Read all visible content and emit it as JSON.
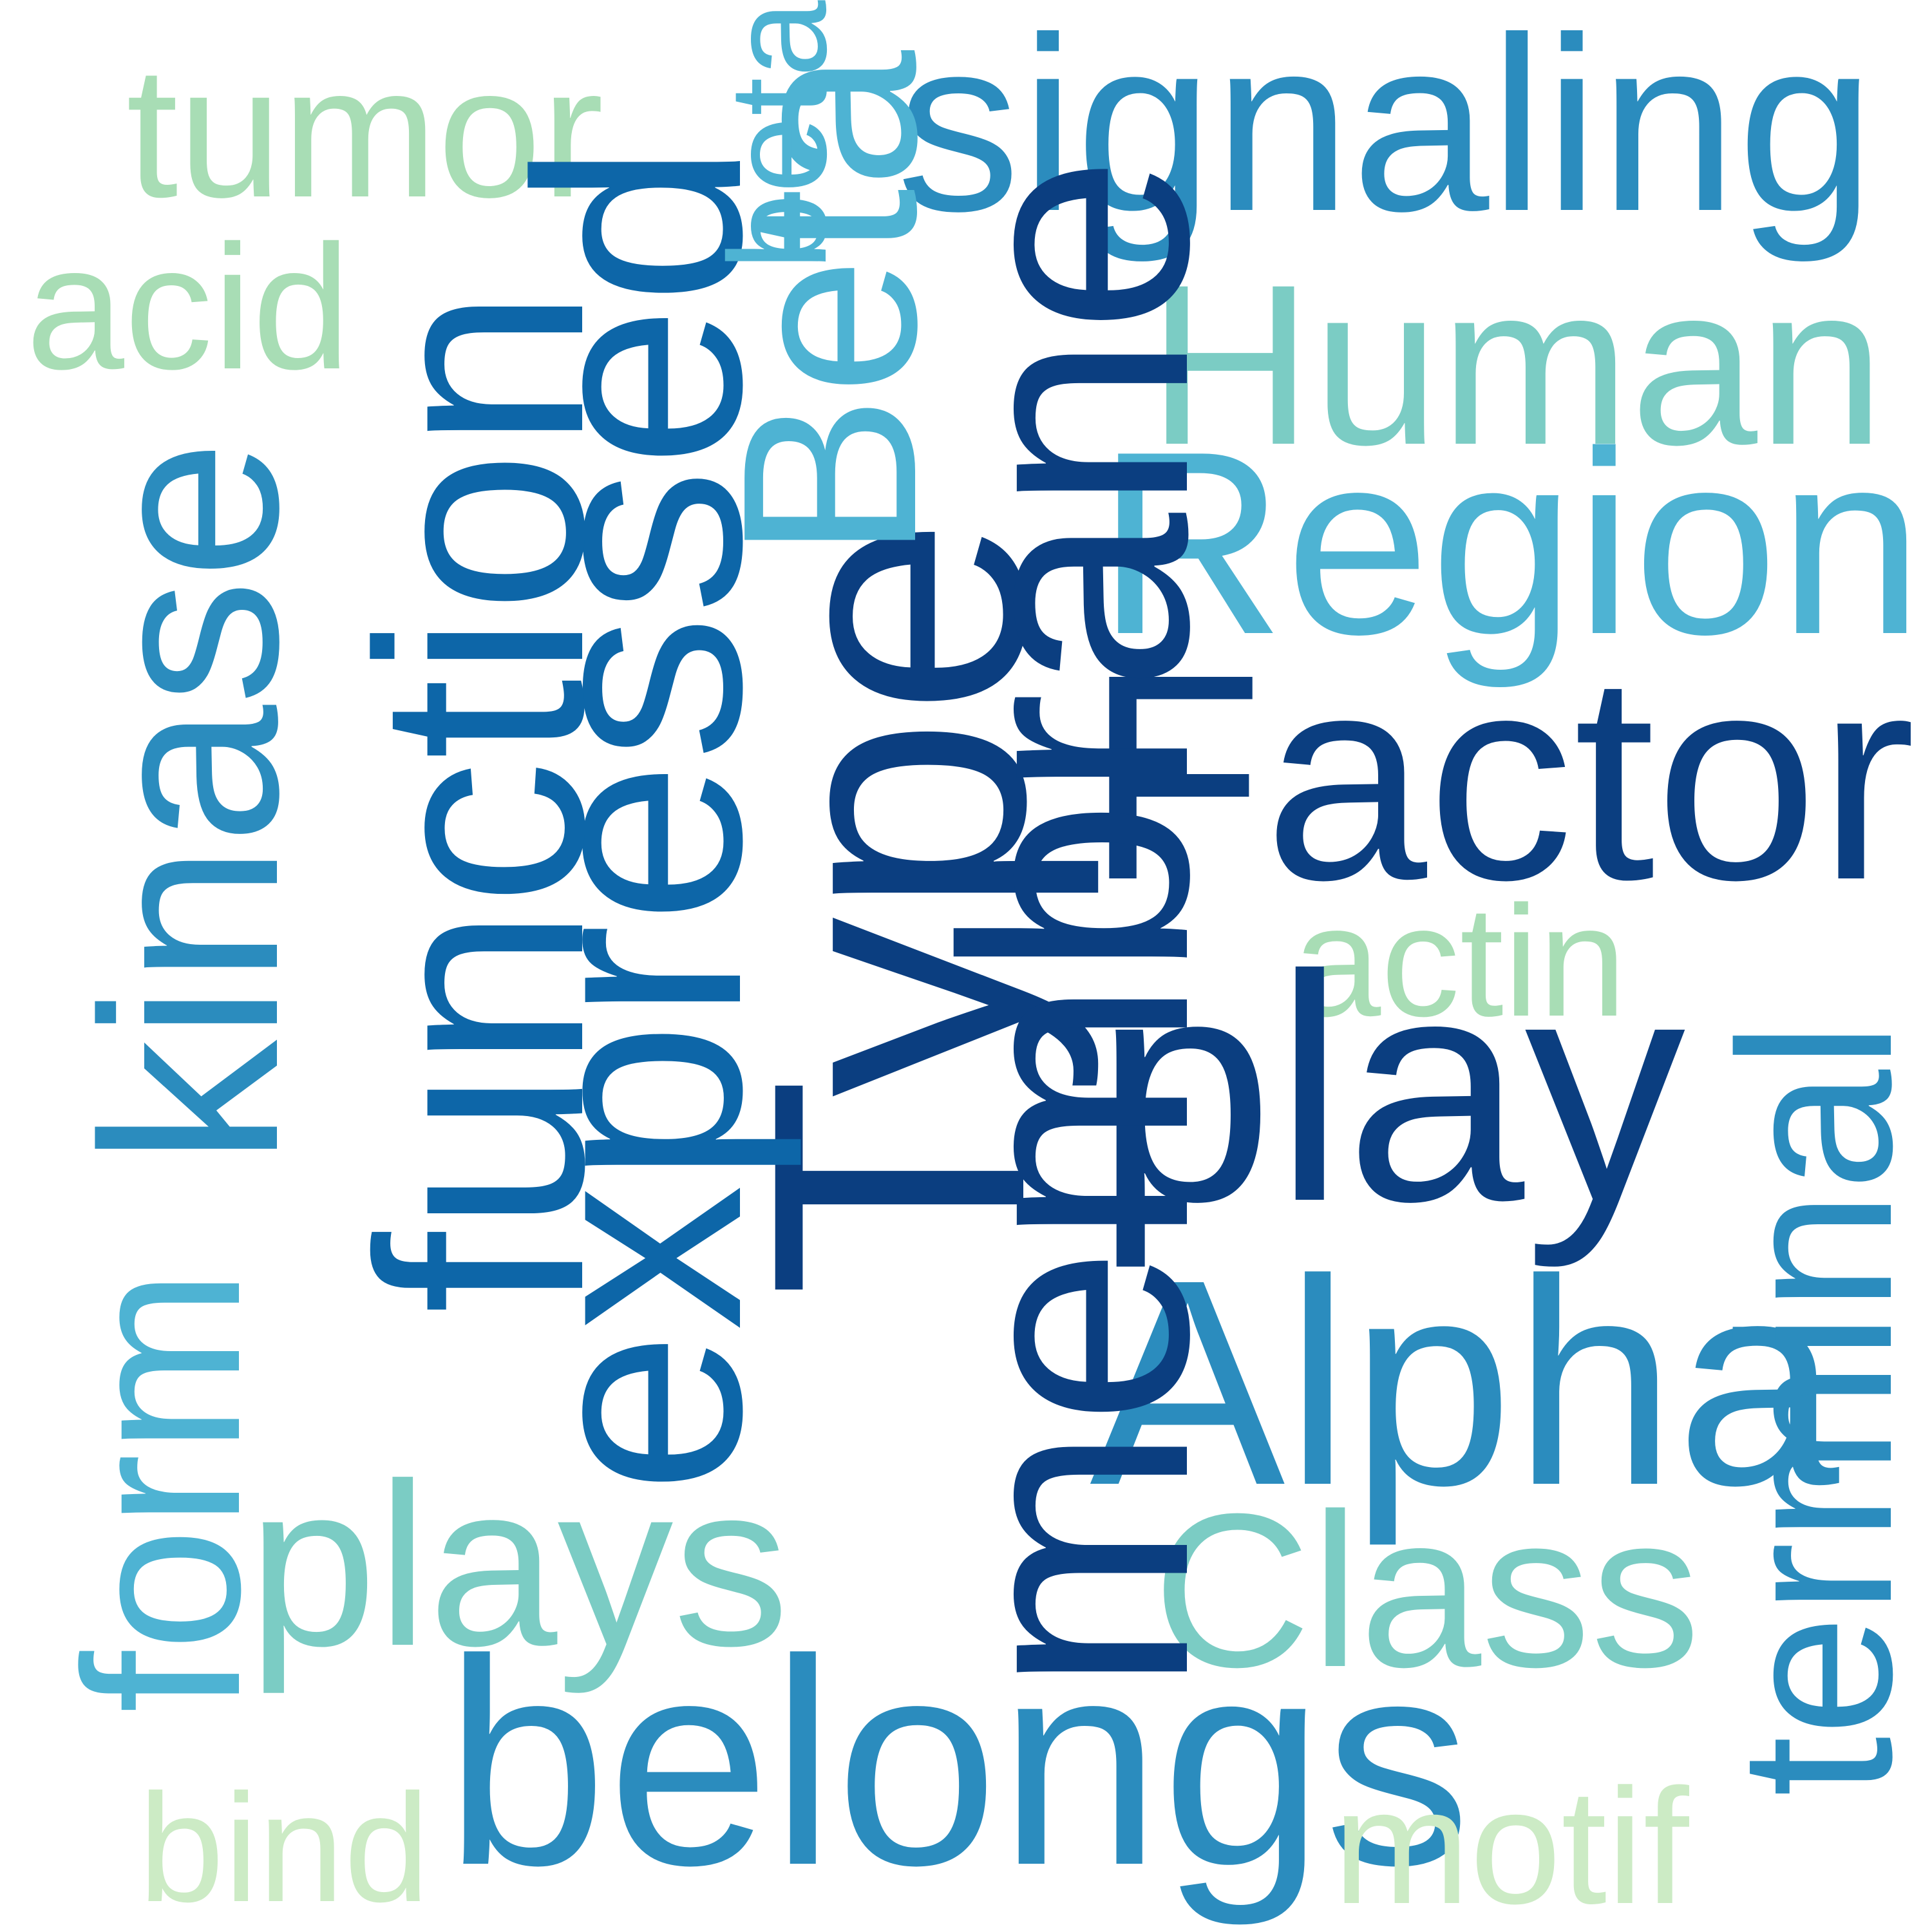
{
  "word_cloud": {
    "words": {
      "signaling": "signaling",
      "tumor": "tumor",
      "acid": "acid",
      "human": "Human",
      "region": "Region",
      "factor": "Factor",
      "actin": "actin",
      "play": "play",
      "alpha": "Alpha",
      "class": "Class",
      "plays": "plays",
      "belongs": "belongs",
      "bind": "bind",
      "motif": "motif",
      "type": "Type",
      "membrane": "membrane",
      "expressed": "expressed",
      "function": "function",
      "kinase": "kinase",
      "form": "form",
      "beta": "Beta",
      "beta_small": "beta",
      "terminal": "terminal"
    },
    "colors": {
      "navy": "#0b3e80",
      "blue": "#0d66a8",
      "mid": "#2b8cbe",
      "sky": "#4eb3d3",
      "teal": "#7bccc4",
      "mint": "#a8ddb5",
      "pale": "#ccebc5",
      "background": "#ffffff"
    }
  }
}
